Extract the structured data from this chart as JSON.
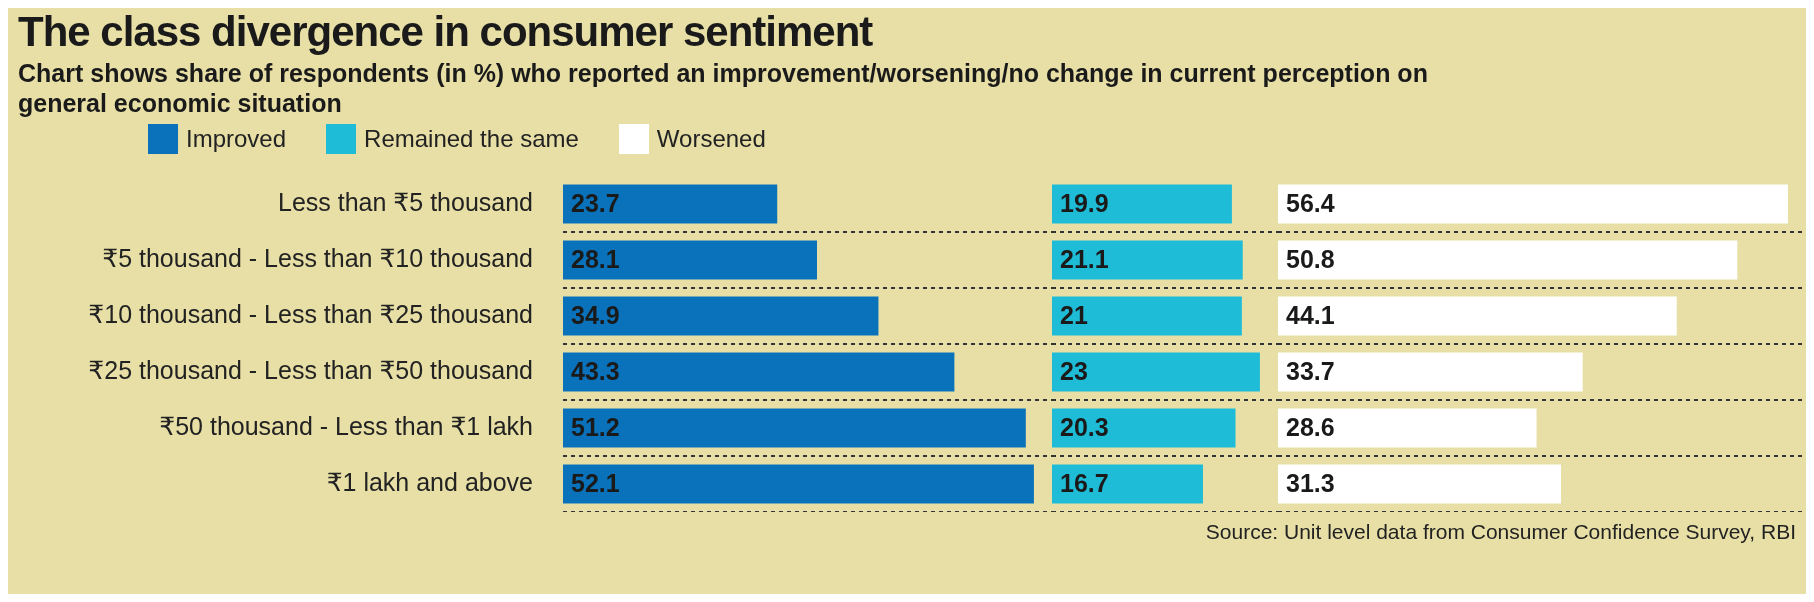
{
  "chart_data": [
    {
      "type": "bar",
      "orientation": "horizontal",
      "title": "The class divergence in consumer sentiment",
      "subtitle": "Chart shows share of respondents (in %) who reported an improvement/worsening/no change in current perception on general economic situation",
      "legend": "top left",
      "data_labels": true,
      "grid": "y",
      "tick_labels": "y",
      "categories": [
        "Less than ₹5 thousand",
        "₹5 thousand - Less than ₹10 thousand",
        "₹10 thousand - Less than ₹25 thousand",
        "₹25 thousand - Less than ₹50 thousand",
        "₹50 thousand - Less than ₹1 lakh",
        "₹1 lakh and above"
      ],
      "series": [
        {
          "name": "Improved",
          "color": "#0a72bb",
          "values": [
            23.7,
            28.1,
            34.9,
            43.3,
            51.2,
            52.1
          ]
        }
      ],
      "annotations": [
        "Source: Unit level data from Consumer Confidence Survey, RBI"
      ]
    },
    {
      "type": "bar",
      "orientation": "horizontal",
      "data_labels": true,
      "grid": "y",
      "tick_labels": false,
      "categories": [
        null,
        null,
        null,
        null,
        null,
        null
      ],
      "series": [
        {
          "name": "Remained the same",
          "color": "#1fbcd8",
          "values": [
            19.9,
            21.1,
            21,
            23,
            20.3,
            16.7
          ]
        }
      ]
    },
    {
      "type": "bar",
      "orientation": "horizontal",
      "data_labels": true,
      "grid": "y",
      "tick_labels": false,
      "categories": [
        null,
        null,
        null,
        null,
        null,
        null
      ],
      "series": [
        {
          "name": "Worsened",
          "color": "#ffffff",
          "values": [
            56.4,
            50.8,
            44.1,
            33.7,
            28.6,
            31.3
          ]
        }
      ]
    }
  ]
}
